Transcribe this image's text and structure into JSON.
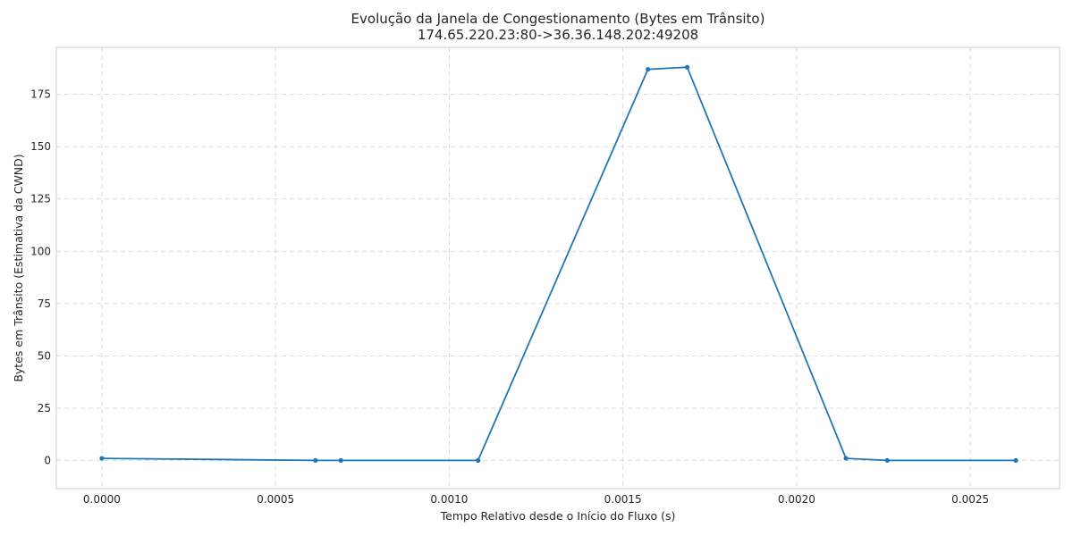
{
  "chart_data": {
    "type": "line",
    "title": "Evolução da Janela de Congestionamento (Bytes em Trânsito)",
    "subtitle": "174.65.220.23:80->36.36.148.202:49208",
    "xlabel": "Tempo Relativo desde o Início do Fluxo (s)",
    "ylabel": "Bytes em Trânsito (Estimativa da CWND)",
    "xlim": [
      -0.000131,
      0.002757
    ],
    "ylim": [
      -13.5,
      197.5
    ],
    "x_ticks": [
      0.0,
      0.0005,
      0.001,
      0.0015,
      0.002,
      0.0025
    ],
    "x_tick_labels": [
      "0.0000",
      "0.0005",
      "0.0010",
      "0.0015",
      "0.0020",
      "0.0025"
    ],
    "y_ticks": [
      0,
      25,
      50,
      75,
      100,
      125,
      150,
      175
    ],
    "y_tick_labels": [
      "0",
      "25",
      "50",
      "75",
      "100",
      "125",
      "150",
      "175"
    ],
    "grid": true,
    "color": "#1f77b4",
    "series": [
      {
        "x": [
          0.0,
          0.000615,
          0.000688,
          0.001083,
          0.001572,
          0.001685,
          0.002142,
          0.002261,
          0.002631
        ],
        "y": [
          1,
          0,
          0,
          0,
          187,
          188,
          1,
          0,
          0
        ]
      }
    ]
  }
}
